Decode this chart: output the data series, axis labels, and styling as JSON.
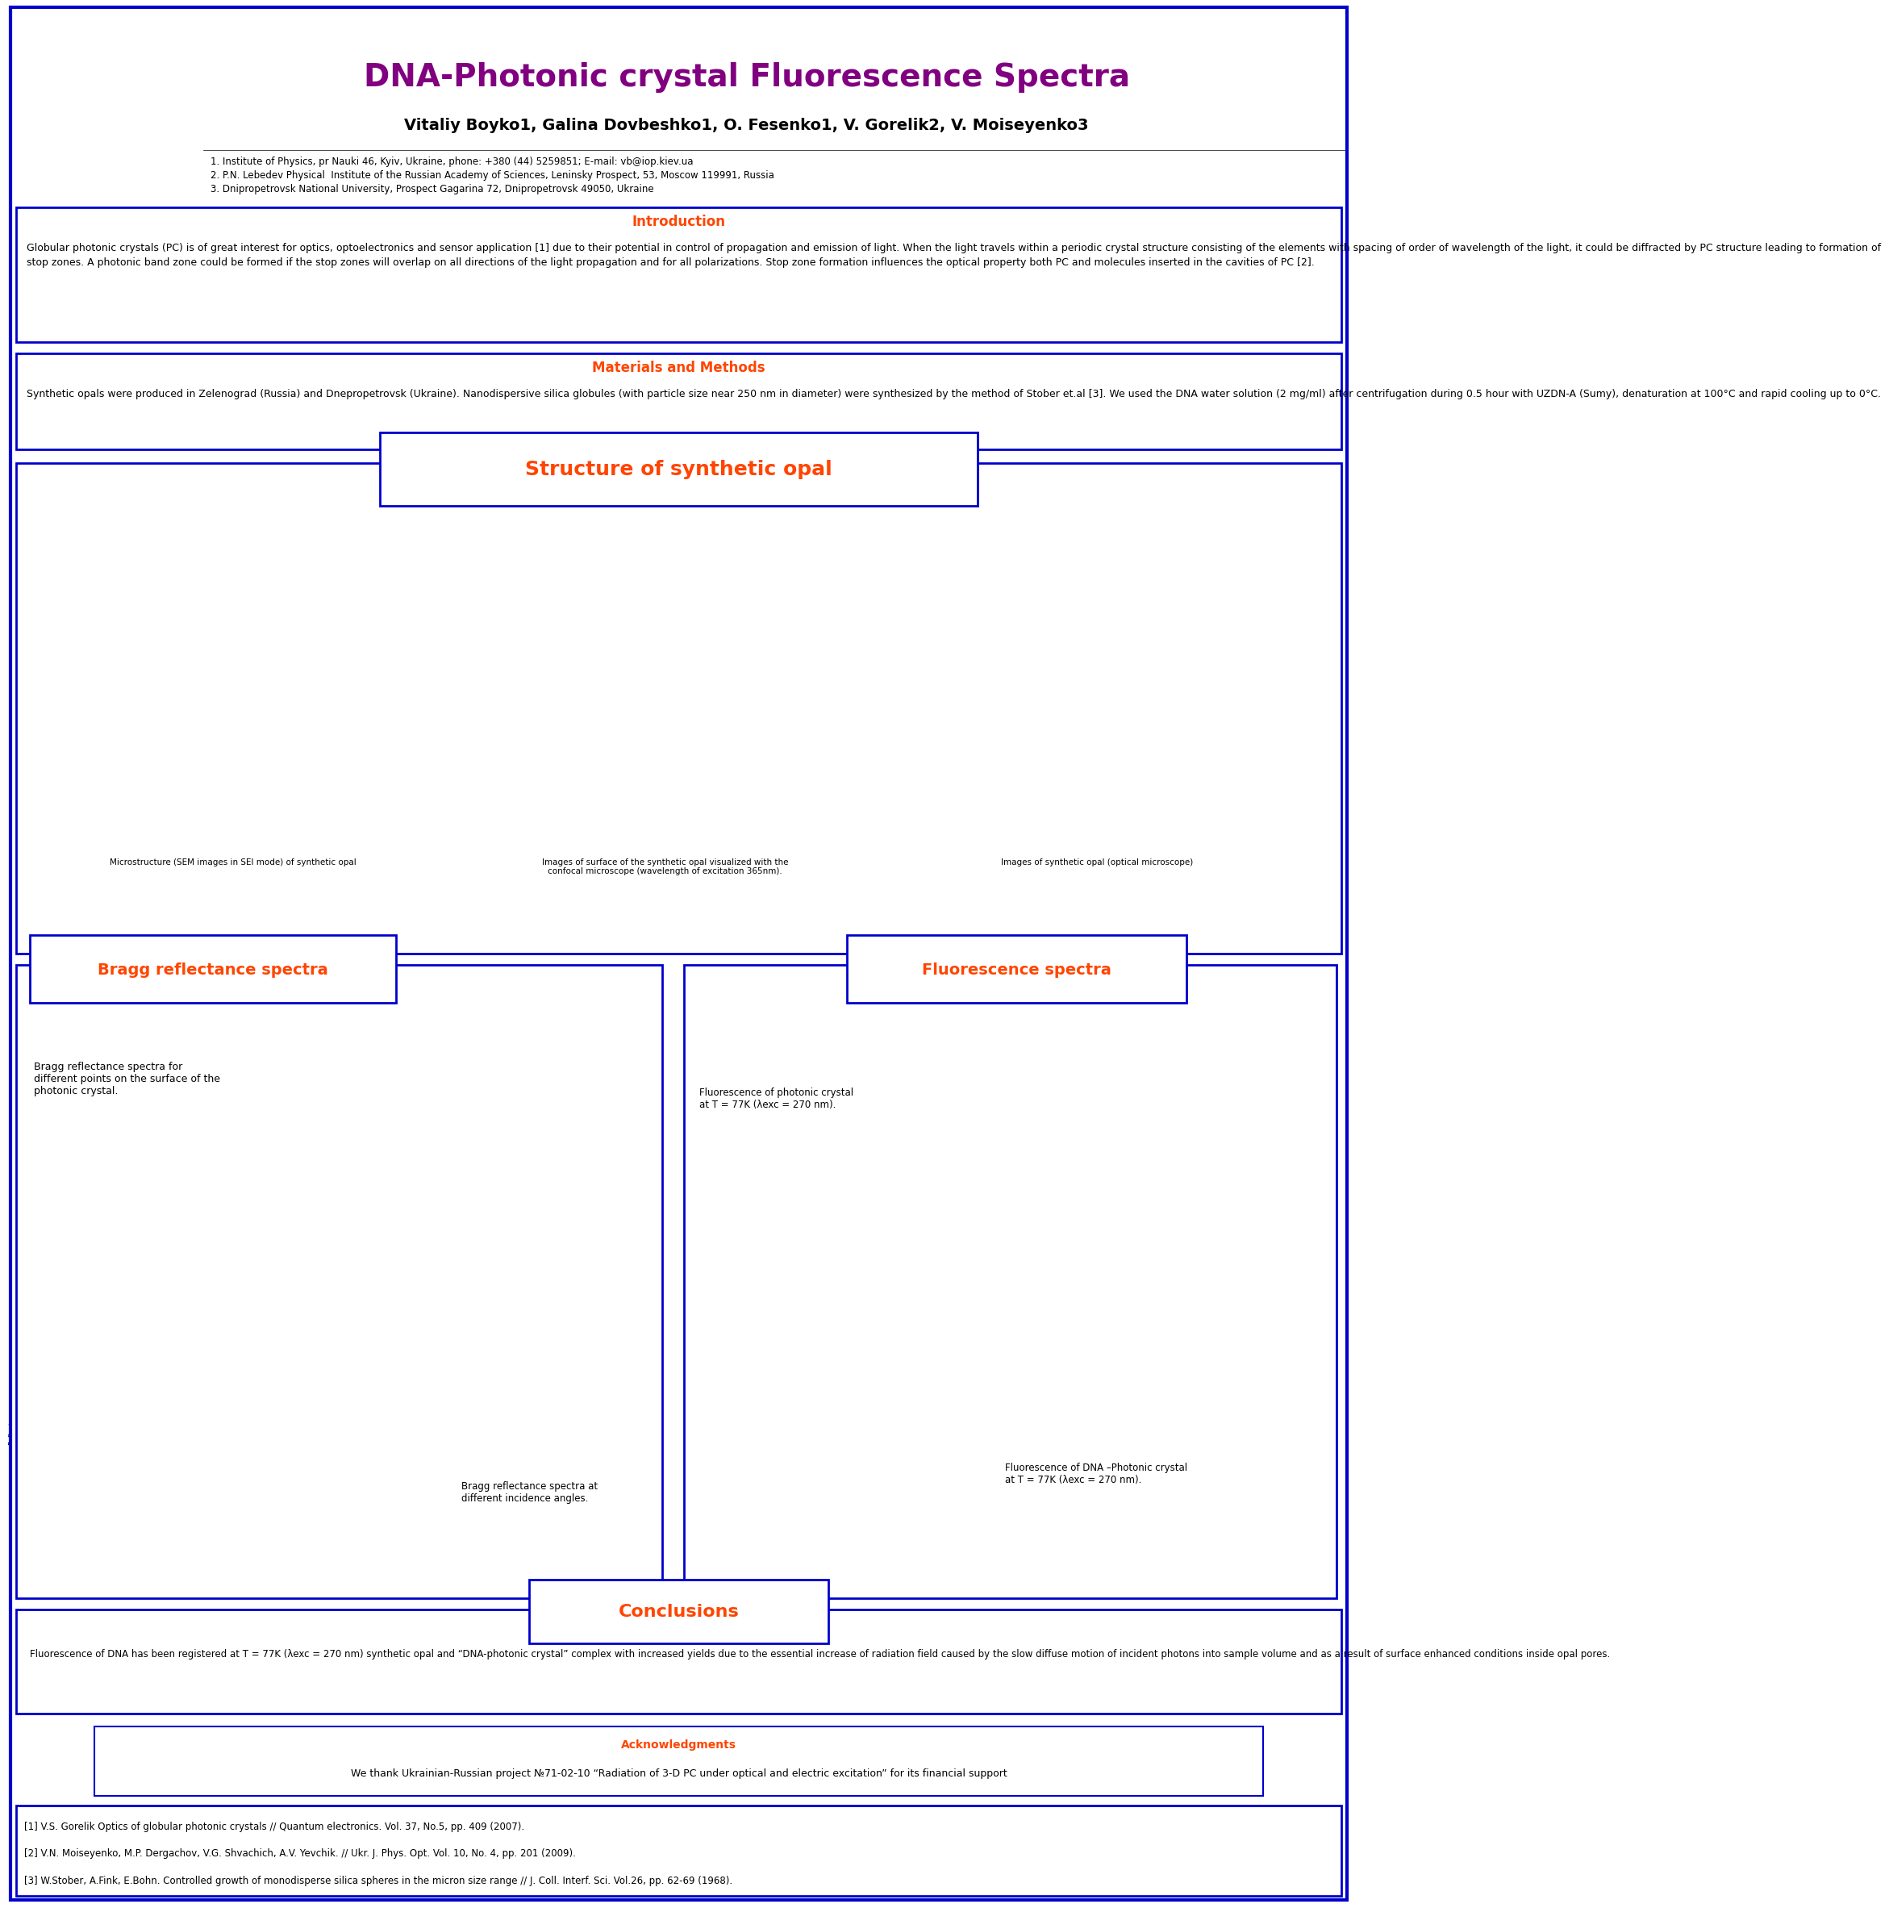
{
  "title": "DNA-Photonic crystal Fluorescence Spectra",
  "title_color": "#800080",
  "authors": "Vitaliy Boyko1, Galina Dovbeshko1, O. Fesenko1, V. Gorelik2, V. Moiseyenko3",
  "affil1": "1. Institute of Physics, pr Nauki 46, Kyiv, Ukraine, phone: +380 (44) 5259851; E-mail: vb@iop.kiev.ua",
  "affil2": "2. P.N. Lebedev Physical  Institute of the Russian Academy of Sciences, Leninsky Prospect, 53, Moscow 119991, Russia",
  "affil3": "3. Dnipropetrovsk National University, Prospect Gagarina 72, Dnipropetrovsk 49050, Ukraine",
  "intro_title": "Introduction",
  "intro_text": "Globular photonic crystals (PC) is of great interest for optics, optoelectronics and sensor application [1] due to their potential in control of propagation and emission of light. When the light travels within a periodic crystal structure consisting of the elements with spacing of order of wavelength of the light, it could be diffracted by PC structure leading to formation of stop zones. A photonic band zone could be formed if the stop zones will overlap on all directions of the light propagation and for all polarizations. Stop zone formation influences the optical property both PC and molecules inserted in the cavities of PC [2].",
  "methods_title": "Materials and Methods",
  "methods_text": "Synthetic opals were produced in Zelenograd (Russia) and Dnepropetrovsk (Ukraine). Nanodispersive silica globules (with particle size near 250 nm in diameter) were synthesized by the method of Stober et.al [3]. We used the DNA water solution (2 mg/ml) after centrifugation during 0.5 hour with UZDN-A (Sumy), denaturation at 100°C and rapid cooling up to 0°C.",
  "structure_title": "Structure of synthetic opal",
  "bragg_title": "Bragg reflectance spectra",
  "fluor_title": "Fluorescence spectra",
  "conclusions_title": "Conclusions",
  "conclusions_text": "Fluorescence of DNA has been registered at T = 77K (λexc = 270 nm) synthetic opal and “DNA-photonic crystal” complex with increased yields due to the essential increase of radiation field caused by the slow diffuse motion of incident photons into sample volume and as a result of surface enhanced conditions inside opal pores.",
  "acknowledgments_title": "Acknowledgments",
  "acknowledgments_text": "We thank Ukrainian-Russian project №71-02-10 “Radiation of 3-D PC under optical and electric excitation” for its financial support",
  "ref1": "[1] V.S. Gorelik Optics of globular photonic crystals // Quantum electronics. Vol. 37, No.5, pp. 409 (2007).",
  "ref2": "[2] V.N. Moiseyenko, M.P. Dergachov, V.G. Shvachich, A.V. Yevchik. // Ukr. J. Phys. Opt. Vol. 10, No. 4, pp. 201 (2009).",
  "ref3": "[3] W.Stober, A.Fink, E.Bohn. Controlled growth of monodisperse silica spheres in the micron size range // J. Coll. Interf. Sci. Vol.26, pp. 62-69 (1968).",
  "bg_color": "#ffffff",
  "border_color": "#0000cc",
  "section_title_color": "#ff4500",
  "bragg_text1": "Bragg reflectance spectra for\ndifferent points on the surface of the\nphotonic crystal.",
  "bragg_text2": "Bragg reflectance spectra at\ndifferent incidence angles.",
  "fluor_text1": "Fluorescence of photonic crystal\nat T = 77K (λexc = 270 nm).",
  "fluor_text2": "Fluorescence of DNA –Photonic crystal\nat T = 77K (λexc = 270 nm).",
  "img_caption1": "Microstructure (SEM images in SEI mode) of synthetic opal",
  "img_caption2": "Images of surface of the synthetic opal visualized with the\nconfocal microscope (wavelength of excitation 365nm).",
  "img_caption3": "Images of synthetic opal (optical microscope)"
}
